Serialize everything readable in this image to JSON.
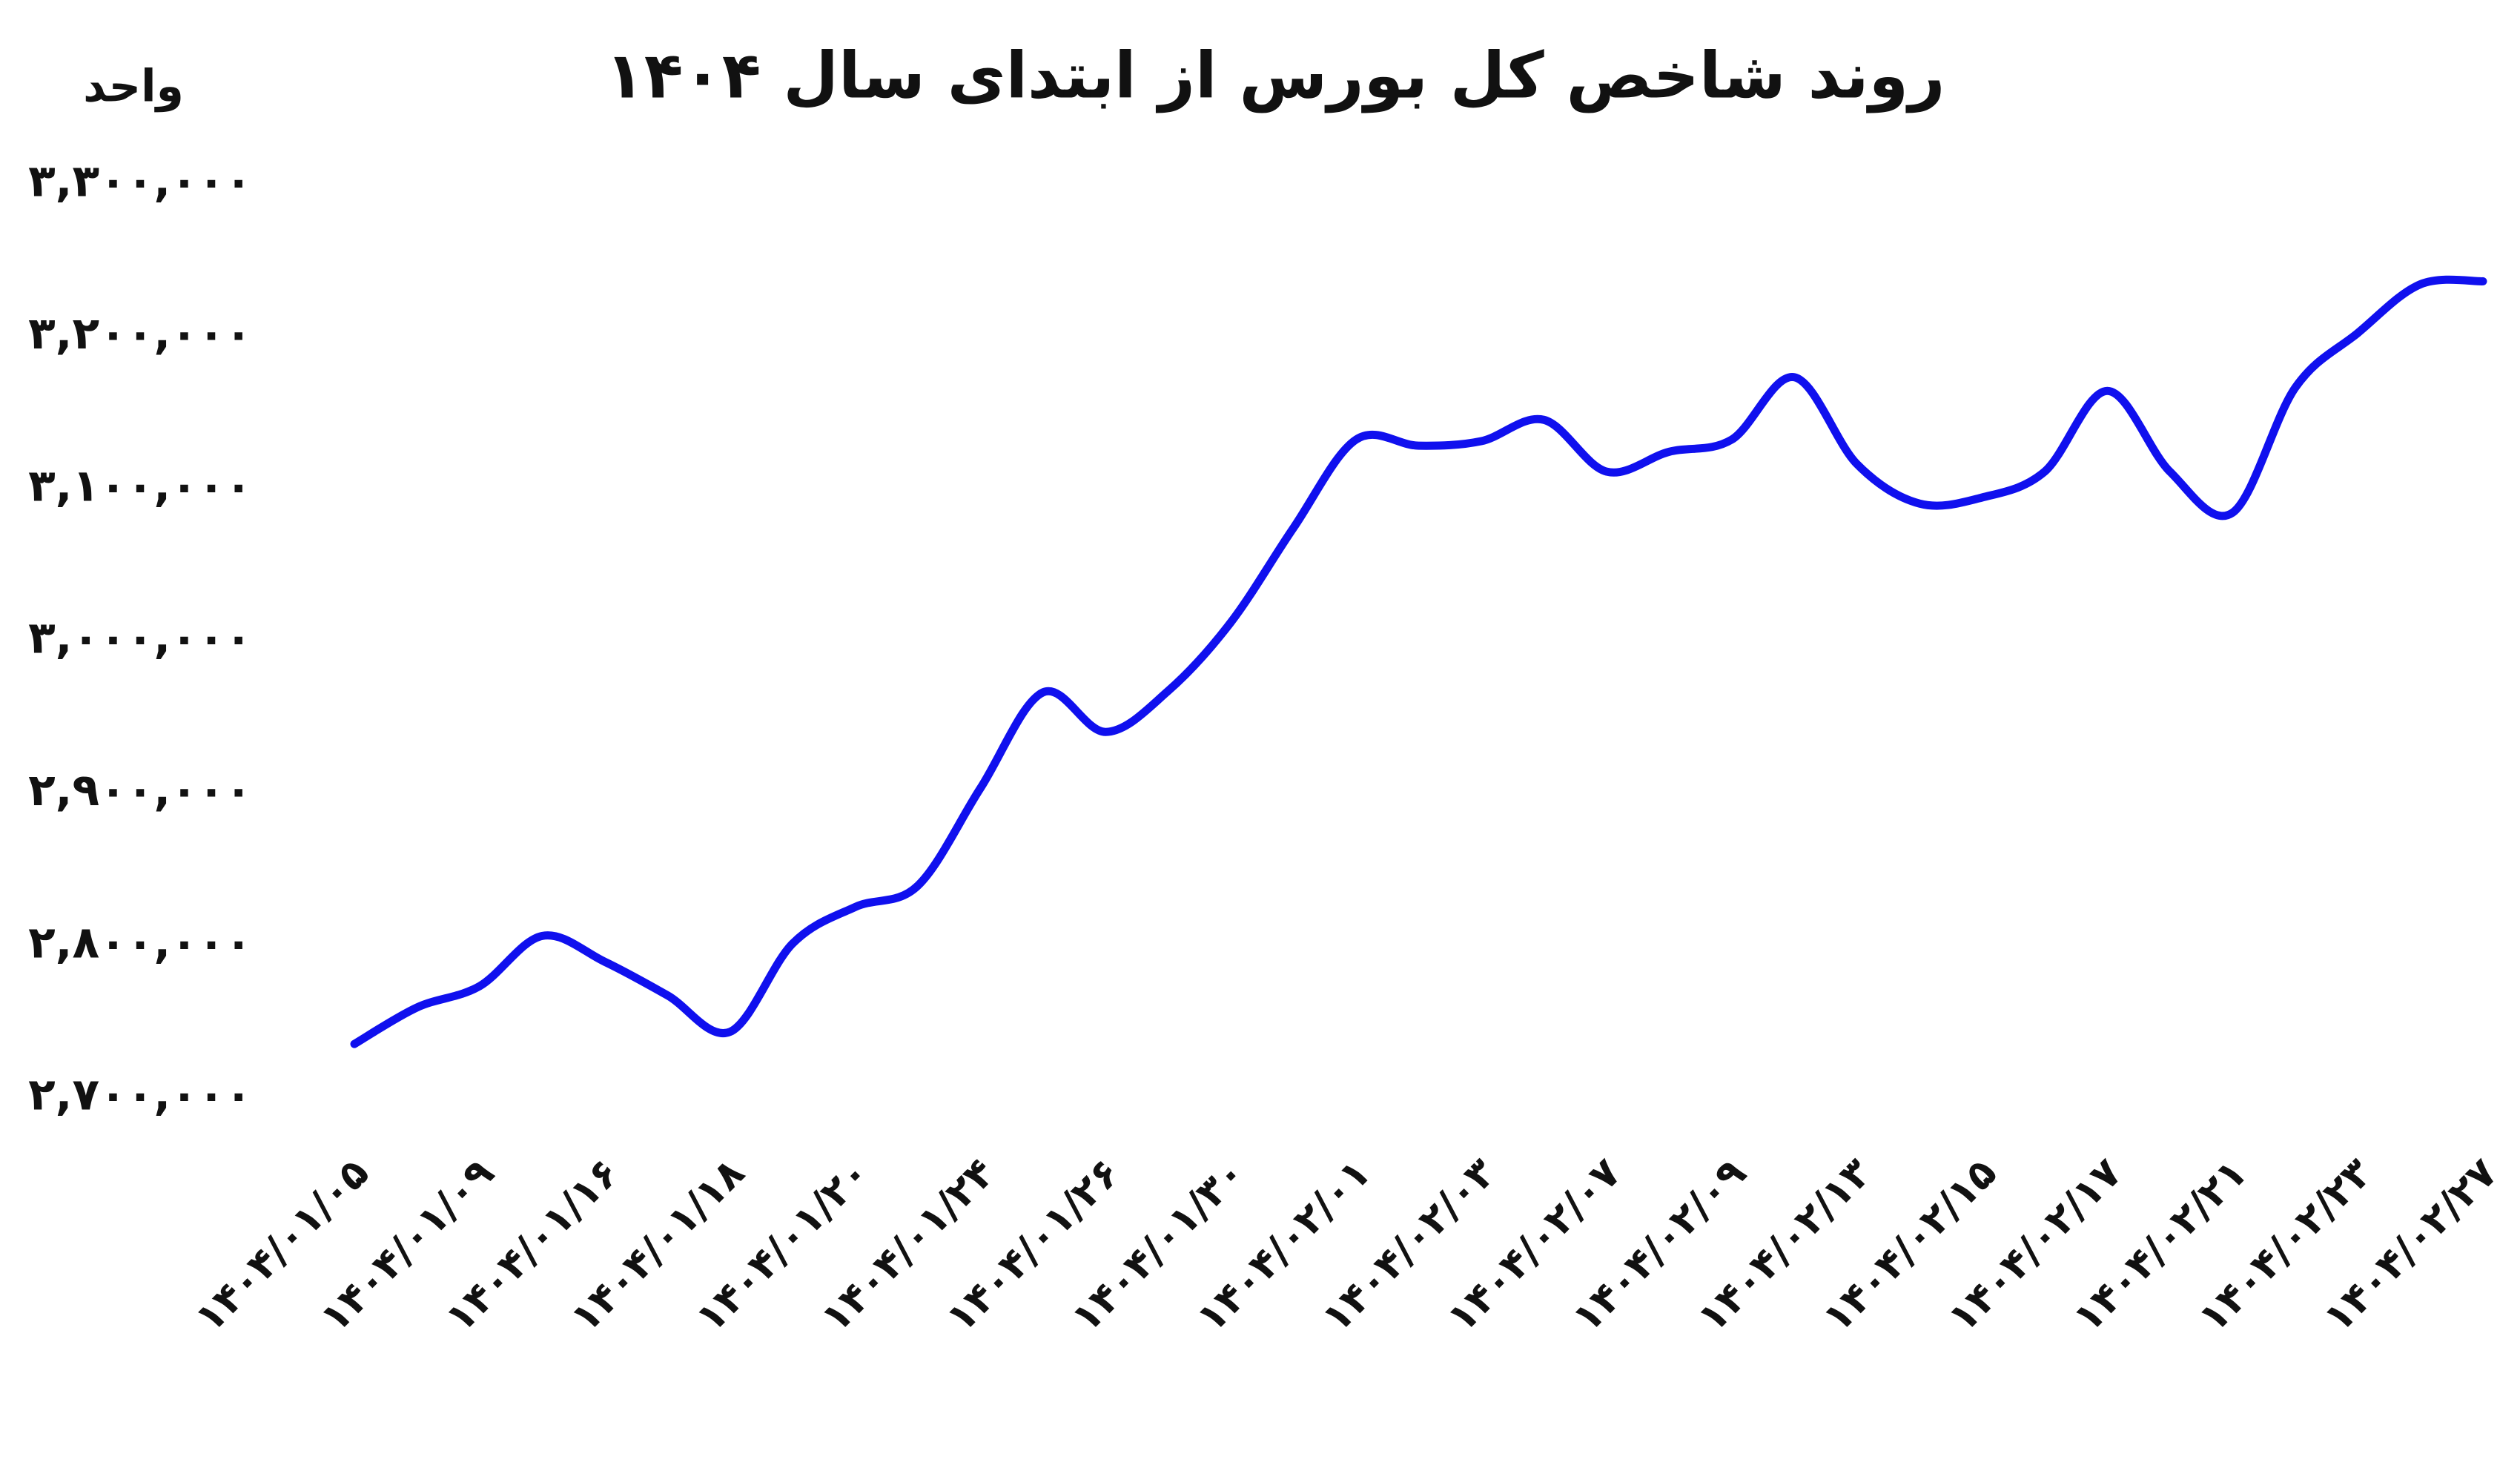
{
  "chart_data": {
    "type": "line",
    "title": "روند شاخص کل بورس از ابتدای سال ۱۴۰۴",
    "y_label": "واحد",
    "categories": [
      "۱۴۰۴/۰۱/۰۵",
      null,
      "۱۴۰۴/۰۱/۰۹",
      null,
      "۱۴۰۴/۰۱/۱۶",
      null,
      "۱۴۰۴/۰۱/۱۸",
      null,
      "۱۴۰۴/۰۱/۲۰",
      null,
      "۱۴۰۴/۰۱/۲۴",
      null,
      "۱۴۰۴/۰۱/۲۶",
      null,
      "۱۴۰۴/۰۱/۳۰",
      null,
      "۱۴۰۴/۰۲/۰۱",
      null,
      "۱۴۰۴/۰۲/۰۳",
      null,
      "۱۴۰۴/۰۲/۰۷",
      null,
      "۱۴۰۴/۰۲/۰۹",
      null,
      "۱۴۰۴/۰۲/۱۳",
      null,
      "۱۴۰۴/۰۲/۱۵",
      null,
      "۱۴۰۴/۰۲/۱۷",
      null,
      "۱۴۰۴/۰۲/۲۱",
      null,
      "۱۴۰۴/۰۲/۲۳",
      null,
      "۱۴۰۴/۰۲/۲۷"
    ],
    "series": [
      {
        "name": "شاخص کل",
        "color": "#1010ee",
        "values": [
          2735000,
          2759000,
          2773000,
          2806000,
          2789000,
          2767000,
          2743000,
          2801000,
          2825000,
          2839000,
          2903000,
          2966000,
          2940000,
          2967000,
          3012000,
          3074000,
          3132000,
          3128000,
          3131000,
          3145000,
          3111000,
          3124000,
          3132000,
          3173000,
          3116000,
          3090000,
          3094000,
          3111000,
          3164000,
          3111000,
          3084000,
          3166000,
          3202000,
          3234000,
          3236000
        ]
      }
    ],
    "ylim": [
      2700000,
      3300000
    ],
    "yticks": [
      {
        "value": 2700000,
        "label": "۲,۷۰۰,۰۰۰"
      },
      {
        "value": 2800000,
        "label": "۲,۸۰۰,۰۰۰"
      },
      {
        "value": 2900000,
        "label": "۲,۹۰۰,۰۰۰"
      },
      {
        "value": 3000000,
        "label": "۳,۰۰۰,۰۰۰"
      },
      {
        "value": 3100000,
        "label": "۳,۱۰۰,۰۰۰"
      },
      {
        "value": 3200000,
        "label": "۳,۲۰۰,۰۰۰"
      },
      {
        "value": 3300000,
        "label": "۳,۳۰۰,۰۰۰"
      }
    ],
    "grid": false
  }
}
